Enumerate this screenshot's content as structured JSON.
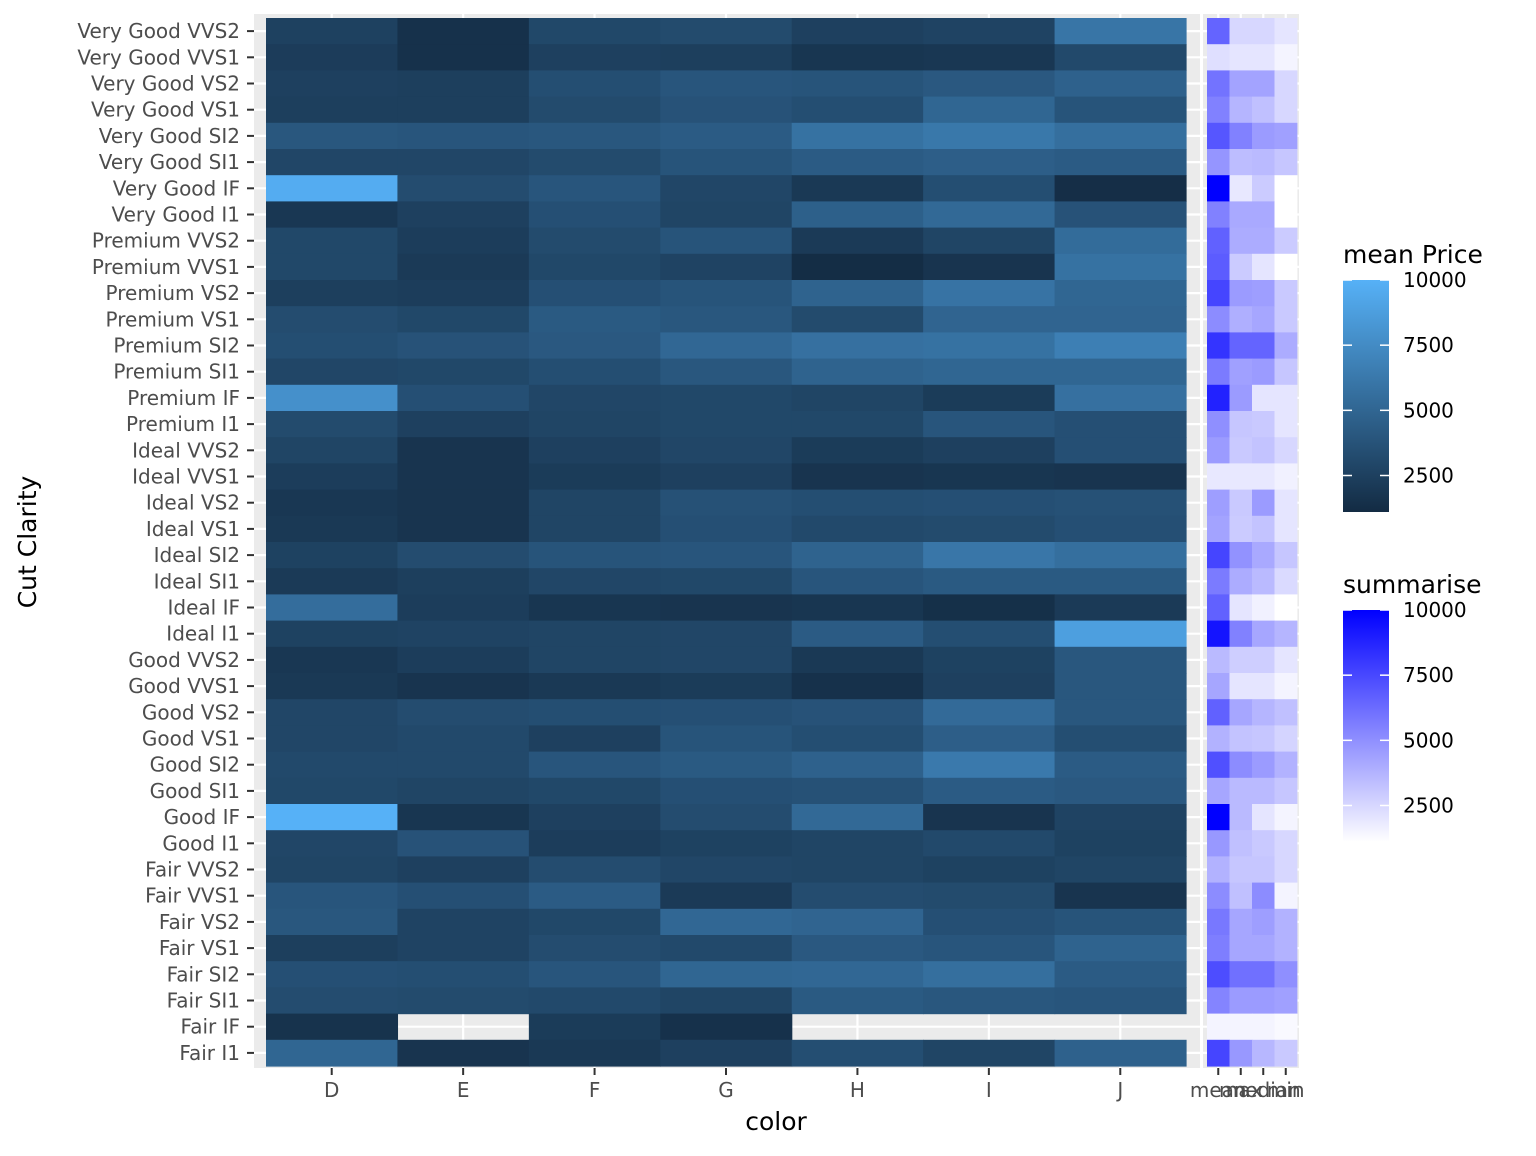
{
  "chart_data": [
    {
      "type": "heatmap",
      "xlabel": "color",
      "ylabel": "Cut Clarity",
      "x": [
        "D",
        "E",
        "F",
        "G",
        "H",
        "I",
        "J"
      ],
      "y": [
        "Very Good VVS2",
        "Very Good VVS1",
        "Very Good VS2",
        "Very Good VS1",
        "Very Good SI2",
        "Very Good SI1",
        "Very Good IF",
        "Very Good I1",
        "Premium VVS2",
        "Premium VVS1",
        "Premium VS2",
        "Premium VS1",
        "Premium SI2",
        "Premium SI1",
        "Premium IF",
        "Premium I1",
        "Ideal VVS2",
        "Ideal VVS1",
        "Ideal VS2",
        "Ideal VS1",
        "Ideal SI2",
        "Ideal SI1",
        "Ideal IF",
        "Ideal I1",
        "Good VVS2",
        "Good VVS1",
        "Good VS2",
        "Good VS1",
        "Good SI2",
        "Good SI1",
        "Good IF",
        "Good I1",
        "Fair VVS2",
        "Fair VVS1",
        "Fair VS2",
        "Fair VS1",
        "Fair SI2",
        "Fair SI1",
        "Fair IF",
        "Fair I1"
      ],
      "values": [
        [
          2550,
          1500,
          3000,
          3200,
          2500,
          2700,
          6000
        ],
        [
          2250,
          1500,
          2500,
          2400,
          1800,
          1900,
          3100
        ],
        [
          2500,
          2400,
          3400,
          3900,
          3800,
          4100,
          4700
        ],
        [
          2400,
          2400,
          3200,
          3700,
          3400,
          5000,
          3800
        ],
        [
          4000,
          3900,
          4000,
          4300,
          5800,
          6200,
          5600
        ],
        [
          2900,
          2900,
          3200,
          3800,
          4300,
          4500,
          4300
        ],
        [
          9700,
          3300,
          3900,
          2900,
          2000,
          3400,
          1300
        ],
        [
          1900,
          2500,
          3500,
          2800,
          4600,
          5200,
          3700
        ],
        [
          3000,
          2300,
          3200,
          3800,
          2100,
          2800,
          5400
        ],
        [
          3000,
          2100,
          3000,
          2700,
          1200,
          1700,
          5800
        ],
        [
          2400,
          2300,
          3500,
          3800,
          4800,
          5900,
          5000
        ],
        [
          3300,
          3000,
          4200,
          4000,
          3200,
          4900,
          4900
        ],
        [
          3400,
          3700,
          4100,
          5100,
          5700,
          5800,
          6700
        ],
        [
          2900,
          3000,
          3400,
          4000,
          4800,
          5000,
          5000
        ],
        [
          7800,
          3500,
          2900,
          3000,
          2800,
          2200,
          5700
        ],
        [
          3200,
          2500,
          2800,
          3000,
          3000,
          3900,
          3500
        ],
        [
          2800,
          1700,
          2500,
          2900,
          2200,
          2500,
          3500
        ],
        [
          2300,
          1700,
          2200,
          2500,
          1700,
          1800,
          1700
        ],
        [
          1900,
          1700,
          2800,
          3600,
          3400,
          3500,
          3600
        ],
        [
          2000,
          1700,
          2800,
          3500,
          3100,
          3200,
          3500
        ],
        [
          2600,
          3300,
          3800,
          3900,
          4800,
          6100,
          5600
        ],
        [
          2100,
          2400,
          2900,
          3000,
          3900,
          4200,
          4200
        ],
        [
          5500,
          2300,
          1800,
          1700,
          1800,
          1400,
          2100
        ],
        [
          2600,
          2700,
          2800,
          2900,
          4300,
          3400,
          8800
        ],
        [
          1900,
          2300,
          2800,
          2900,
          2000,
          2600,
          4000
        ],
        [
          2000,
          1700,
          2000,
          2200,
          1500,
          2500,
          4000
        ],
        [
          2900,
          3300,
          3400,
          3500,
          3700,
          5300,
          4000
        ],
        [
          2900,
          3100,
          2500,
          3800,
          3400,
          4500,
          3400
        ],
        [
          3100,
          3100,
          3900,
          4200,
          4700,
          6300,
          4300
        ],
        [
          3000,
          2800,
          3000,
          3500,
          3600,
          4300,
          4100
        ],
        [
          10000,
          1800,
          2500,
          3300,
          5200,
          1700,
          2700
        ],
        [
          2900,
          3700,
          2300,
          2600,
          2800,
          3100,
          2600
        ],
        [
          2800,
          2500,
          3300,
          2900,
          2800,
          2600,
          2800
        ],
        [
          3900,
          3500,
          4300,
          2100,
          3300,
          3200,
          1700
        ],
        [
          4000,
          2700,
          3000,
          5100,
          4900,
          3500,
          3800
        ],
        [
          2400,
          2700,
          3300,
          3100,
          4100,
          3900,
          4800
        ],
        [
          3500,
          3400,
          3900,
          5000,
          5100,
          5600,
          4300
        ],
        [
          3300,
          3200,
          3100,
          2800,
          4200,
          4000,
          3900
        ],
        [
          1600,
          null,
          2200,
          1500,
          null,
          null,
          null
        ],
        [
          5000,
          1700,
          2000,
          2500,
          3400,
          2800,
          4700
        ]
      ],
      "value_range": [
        1100,
        10000
      ],
      "colors": {
        "low": "#132B43",
        "high": "#56B1F7",
        "na": "#ebebeb"
      },
      "legend": {
        "title": "mean Price",
        "ticks": [
          "10000",
          "7500",
          "5000",
          "2500"
        ],
        "position": "right"
      }
    },
    {
      "type": "heatmap",
      "xlabel": "",
      "x": [
        "mean",
        "max",
        "median",
        "min"
      ],
      "values": [
        [
          6500,
          2500,
          2500,
          2000
        ],
        [
          2200,
          2000,
          2000,
          1500
        ],
        [
          6000,
          4300,
          4300,
          2500
        ],
        [
          5500,
          3700,
          3300,
          2500
        ],
        [
          7000,
          5500,
          4600,
          4400
        ],
        [
          4800,
          3400,
          3500,
          3100
        ],
        [
          10000,
          1900,
          2900,
          0
        ],
        [
          5500,
          4100,
          4100,
          900
        ],
        [
          6600,
          4000,
          4000,
          2900
        ],
        [
          6800,
          2900,
          2000,
          800
        ],
        [
          7600,
          4600,
          4500,
          3000
        ],
        [
          5100,
          3900,
          4200,
          3000
        ],
        [
          8200,
          6500,
          6500,
          4000
        ],
        [
          5700,
          4400,
          4600,
          3100
        ],
        [
          8800,
          4600,
          2000,
          2000
        ],
        [
          5000,
          3100,
          3000,
          2000
        ],
        [
          4600,
          3000,
          3200,
          2500
        ],
        [
          1900,
          1900,
          1900,
          1600
        ],
        [
          4500,
          3000,
          4600,
          2000
        ],
        [
          4300,
          2900,
          3200,
          2000
        ],
        [
          7600,
          4900,
          4100,
          3100
        ],
        [
          5700,
          4000,
          3500,
          2400
        ],
        [
          6600,
          2000,
          1600,
          900
        ],
        [
          9300,
          5500,
          4200,
          3700
        ],
        [
          3500,
          2800,
          2800,
          2000
        ],
        [
          4200,
          2000,
          2000,
          1500
        ],
        [
          6600,
          4200,
          3700,
          3300
        ],
        [
          3800,
          3200,
          3100,
          2600
        ],
        [
          7200,
          5100,
          4600,
          3800
        ],
        [
          4200,
          3500,
          3500,
          3100
        ],
        [
          10000,
          3500,
          2000,
          1500
        ],
        [
          4700,
          3300,
          3000,
          2500
        ],
        [
          3800,
          3100,
          3100,
          2500
        ],
        [
          5100,
          3300,
          5100,
          1500
        ],
        [
          5800,
          4200,
          4500,
          3800
        ],
        [
          5600,
          4200,
          4200,
          3800
        ],
        [
          7300,
          6100,
          6100,
          5000
        ],
        [
          5400,
          4600,
          4600,
          4400
        ],
        [
          1500,
          1500,
          1500,
          1300
        ],
        [
          7600,
          4700,
          3600,
          3000
        ]
      ],
      "value_range": [
        1100,
        10000
      ],
      "colors": {
        "low": "#FFFFFF",
        "high": "#0000FF"
      },
      "legend": {
        "title": "summarise",
        "ticks": [
          "10000",
          "7500",
          "5000",
          "2500"
        ],
        "position": "right"
      }
    }
  ]
}
